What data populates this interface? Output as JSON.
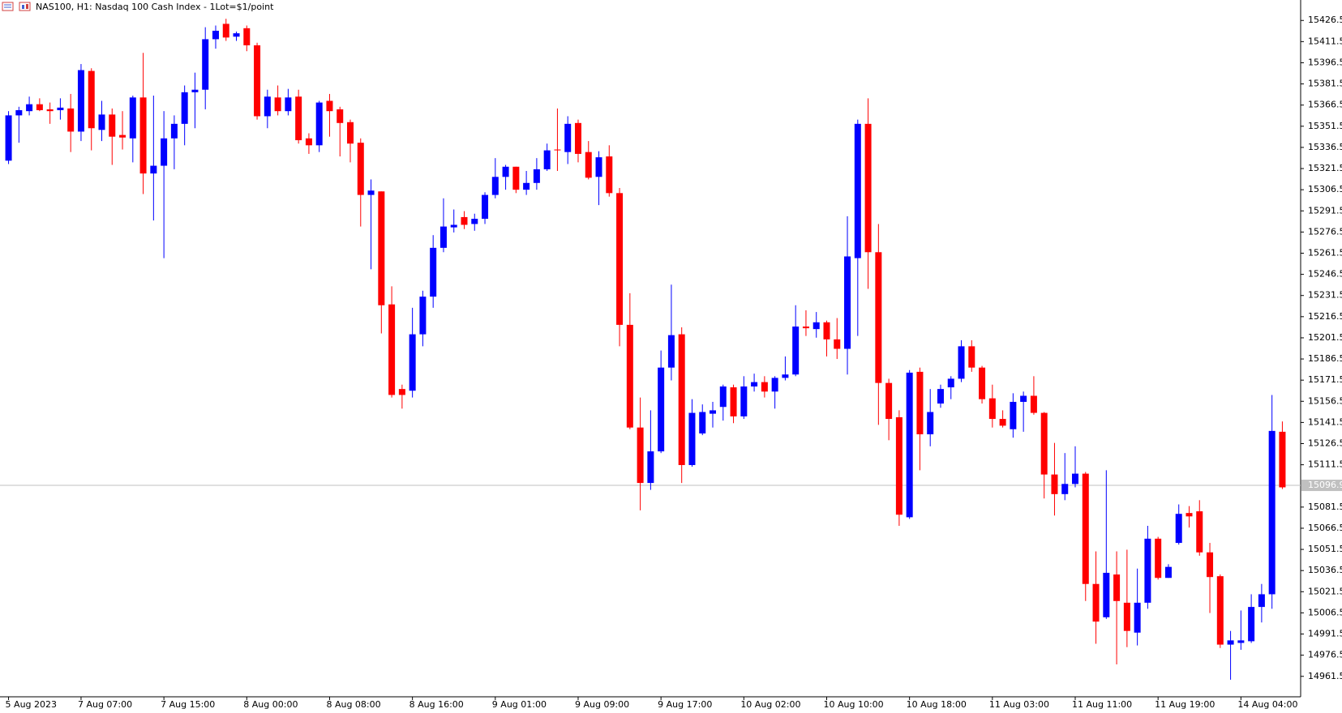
{
  "chart_data": {
    "type": "candlestick",
    "title": "NAS100, H1:  Nasdaq 100 Cash Index - 1Lot=$1/point",
    "categories": [
      "5 Aug 2023",
      null,
      null,
      null,
      null,
      null,
      null,
      "7 Aug 07:00",
      null,
      null,
      null,
      null,
      null,
      null,
      null,
      "7 Aug 15:00",
      null,
      null,
      null,
      null,
      null,
      null,
      null,
      "8 Aug 00:00",
      null,
      null,
      null,
      null,
      null,
      null,
      null,
      "8 Aug 08:00",
      null,
      null,
      null,
      null,
      null,
      null,
      null,
      "8 Aug 16:00",
      null,
      null,
      null,
      null,
      null,
      null,
      null,
      "9 Aug 01:00",
      null,
      null,
      null,
      null,
      null,
      null,
      null,
      "9 Aug 09:00",
      null,
      null,
      null,
      null,
      null,
      null,
      null,
      "9 Aug 17:00",
      null,
      null,
      null,
      null,
      null,
      null,
      null,
      "10 Aug 02:00",
      null,
      null,
      null,
      null,
      null,
      null,
      null,
      "10 Aug 10:00",
      null,
      null,
      null,
      null,
      null,
      null,
      null,
      "10 Aug 18:00",
      null,
      null,
      null,
      null,
      null,
      null,
      null,
      "11 Aug 03:00",
      null,
      null,
      null,
      null,
      null,
      null,
      null,
      "11 Aug 11:00",
      null,
      null,
      null,
      null,
      null,
      null,
      null,
      "11 Aug 19:00",
      null,
      null,
      null,
      null,
      null,
      null,
      null,
      "14 Aug 04:00",
      null,
      null,
      null,
      null
    ],
    "open": [
      15327.1,
      15359.2,
      15362.2,
      15367.1,
      15363.5,
      15362.9,
      15364.1,
      15347.7,
      15390.7,
      15348.9,
      15359.8,
      15345.3,
      15342.9,
      15371.9,
      15318.0,
      15323.5,
      15342.9,
      15353.2,
      15375.6,
      15377.4,
      15413.2,
      15424.1,
      15415.0,
      15421.0,
      15408.9,
      15358.6,
      15371.9,
      15362.2,
      15372.5,
      15342.9,
      15338.0,
      15369.5,
      15363.5,
      15354.4,
      15339.8,
      15302.8,
      15305.3,
      15225.2,
      15165.2,
      15164.0,
      15204.0,
      15230.7,
      15265.3,
      15279.8,
      15287.1,
      15282.2,
      15285.9,
      15302.8,
      15315.6,
      15322.8,
      15306.5,
      15311.3,
      15321.0,
      15335.0,
      15333.2,
      15353.8,
      15333.2,
      15315.6,
      15330.1,
      15304.1,
      15210.7,
      15137.9,
      15098.6,
      15121.0,
      15180.4,
      15204.0,
      15111.3,
      15133.7,
      15147.7,
      15152.5,
      15166.4,
      15145.8,
      15167.0,
      15170.1,
      15163.4,
      15173.1,
      15175.5,
      15209.5,
      15207.7,
      15212.5,
      15200.4,
      15193.7,
      15258.0,
      15353.2,
      15262.2,
      15169.5,
      15145.2,
      15074.3,
      15177.4,
      15133.1,
      15154.9,
      15166.4,
      15172.5,
      15195.5,
      15180.4,
      15158.6,
      15144.0,
      15136.7,
      15156.1,
      15160.4,
      15148.3,
      15104.6,
      15090.7,
      15097.9,
      15105.2,
      15027.0,
      15003.4,
      15033.7,
      15013.7,
      14992.5,
      15013.7,
      15059.1,
      15031.3,
      15056.1,
      15077.3,
      15078.5,
      15049.4,
      15032.5,
      14984.0,
      14985.2,
      14986.4,
      15010.7,
      15019.7,
      15134.9
    ],
    "high": [
      15362.2,
      15365.3,
      15372.5,
      15371.3,
      15368.3,
      15371.3,
      15374.4,
      15395.6,
      15392.6,
      15369.5,
      15364.1,
      15362.2,
      15373.2,
      15403.5,
      15373.2,
      15362.2,
      15359.2,
      15380.4,
      15389.5,
      15421.7,
      15422.9,
      15427.7,
      15418.6,
      15422.9,
      15410.7,
      15377.4,
      15380.4,
      15378.0,
      15377.4,
      15346.5,
      15369.5,
      15374.4,
      15365.3,
      15356.2,
      15342.9,
      15313.8,
      15305.3,
      15238.0,
      15168.3,
      15222.8,
      15234.9,
      15274.3,
      15300.4,
      15292.5,
      15291.3,
      15289.5,
      15304.7,
      15328.9,
      15324.1,
      15322.8,
      15319.8,
      15328.9,
      15339.2,
      15364.1,
      15358.6,
      15356.2,
      15341.0,
      15333.8,
      15338.0,
      15307.7,
      15233.1,
      15159.2,
      15150.1,
      15192.5,
      15239.2,
      15208.9,
      15158.0,
      15154.3,
      15156.1,
      15168.3,
      15168.3,
      15174.3,
      15176.1,
      15174.3,
      15174.3,
      15188.3,
      15224.6,
      15221.0,
      15219.8,
      15213.7,
      15215.5,
      15287.7,
      15356.2,
      15371.3,
      15282.2,
      15172.5,
      15150.1,
      15178.6,
      15180.4,
      15165.2,
      15168.3,
      15174.3,
      15199.8,
      15199.8,
      15181.6,
      15168.3,
      15150.1,
      15162.2,
      15163.4,
      15174.3,
      15148.9,
      15127.0,
      15119.8,
      15124.6,
      15106.4,
      15050.1,
      15107.6,
      15050.1,
      15051.3,
      15037.9,
      15068.2,
      15060.4,
      15041.0,
      15083.4,
      15082.2,
      15086.4,
      15056.1,
      15033.7,
      14993.7,
      15008.2,
      15019.7,
      15027.0,
      15161.0,
      15142.2
    ],
    "low": [
      15324.7,
      15339.8,
      15359.2,
      15362.2,
      15353.2,
      15356.2,
      15333.2,
      15341.0,
      15334.4,
      15341.0,
      15324.1,
      15335.0,
      15325.9,
      15303.4,
      15284.7,
      15258.0,
      15321.0,
      15338.0,
      15350.1,
      15363.5,
      15406.5,
      15412.0,
      15412.0,
      15404.7,
      15356.2,
      15350.1,
      15359.2,
      15359.2,
      15339.2,
      15331.9,
      15333.2,
      15344.1,
      15330.1,
      15325.9,
      15280.4,
      15250.1,
      15204.6,
      15159.2,
      15151.3,
      15159.2,
      15195.5,
      15222.8,
      15262.2,
      15276.2,
      15278.6,
      15277.4,
      15282.2,
      15300.4,
      15306.5,
      15304.1,
      15302.8,
      15306.5,
      15319.8,
      15319.8,
      15324.7,
      15325.9,
      15313.8,
      15295.6,
      15301.6,
      15195.5,
      15136.7,
      15079.2,
      15093.7,
      15119.8,
      15171.3,
      15098.6,
      15110.1,
      15132.5,
      15137.9,
      15142.8,
      15141.0,
      15144.0,
      15163.4,
      15159.2,
      15151.3,
      15171.3,
      15174.3,
      15202.8,
      15201.6,
      15188.3,
      15186.5,
      15175.5,
      15202.8,
      15236.2,
      15139.8,
      15128.9,
      15068.2,
      15073.1,
      15107.6,
      15124.6,
      15151.9,
      15158.0,
      15170.1,
      15177.4,
      15154.9,
      15137.9,
      15137.9,
      15130.7,
      15134.9,
      15147.0,
      15087.6,
      15075.5,
      15086.4,
      15095.5,
      15014.9,
      14984.6,
      15002.2,
      14970.0,
      14982.2,
      14983.4,
      15009.4,
      15030.1,
      15031.3,
      15054.9,
      15067.0,
      15047.0,
      15006.4,
      14981.6,
      14959.1,
      14980.3,
      14985.2,
      14999.7,
      15009.4,
      15094.3
    ],
    "close": [
      15359.2,
      15362.9,
      15367.1,
      15362.9,
      15362.2,
      15364.7,
      15347.7,
      15391.3,
      15350.1,
      15359.8,
      15344.1,
      15343.5,
      15371.9,
      15318.0,
      15323.5,
      15342.9,
      15353.2,
      15375.6,
      15377.4,
      15413.2,
      15419.2,
      15414.4,
      15417.4,
      15408.9,
      15358.6,
      15372.5,
      15362.2,
      15371.9,
      15341.6,
      15338.0,
      15368.3,
      15362.2,
      15353.8,
      15339.2,
      15302.8,
      15305.9,
      15224.6,
      15161.0,
      15161.0,
      15204.0,
      15230.7,
      15265.3,
      15280.4,
      15281.6,
      15281.6,
      15285.9,
      15302.8,
      15315.6,
      15322.8,
      15306.5,
      15311.3,
      15321.0,
      15334.4,
      15334.4,
      15353.2,
      15331.9,
      15315.0,
      15329.5,
      15304.1,
      15210.7,
      15137.9,
      15098.6,
      15121.0,
      15180.4,
      15203.4,
      15111.3,
      15148.3,
      15148.9,
      15150.1,
      15167.0,
      15145.8,
      15167.0,
      15170.1,
      15163.4,
      15173.1,
      15175.5,
      15209.5,
      15208.3,
      15212.5,
      15200.4,
      15193.7,
      15259.2,
      15353.2,
      15262.2,
      15169.5,
      15144.0,
      15076.1,
      15176.8,
      15133.1,
      15148.9,
      15165.2,
      15172.5,
      15195.5,
      15180.4,
      15158.0,
      15144.0,
      15139.2,
      15156.1,
      15160.4,
      15148.3,
      15104.6,
      15090.7,
      15097.9,
      15105.2,
      15027.0,
      15000.3,
      15034.9,
      15014.9,
      14993.7,
      15013.7,
      15059.1,
      15031.3,
      15039.1,
      15076.7,
      15074.9,
      15049.4,
      15031.9,
      14984.0,
      14987.0,
      14987.0,
      15010.7,
      15019.7,
      15135.5,
      15095.5
    ],
    "up_color": "#0000ff",
    "down_color": "#ff0000",
    "current_price": 15096.9,
    "current_price_color": "#c0c0c0",
    "ylim": [
      14947.0,
      15441.0
    ],
    "yticks": [
      14961.5,
      14976.5,
      14991.5,
      15006.5,
      15021.5,
      15036.5,
      15051.5,
      15066.5,
      15081.5,
      15111.5,
      15126.5,
      15141.5,
      15156.5,
      15171.5,
      15186.5,
      15201.5,
      15216.5,
      15231.5,
      15246.5,
      15261.5,
      15276.5,
      15291.5,
      15306.5,
      15321.5,
      15336.5,
      15351.5,
      15366.5,
      15381.5,
      15396.5,
      15411.5,
      15426.5
    ],
    "grid": false
  }
}
